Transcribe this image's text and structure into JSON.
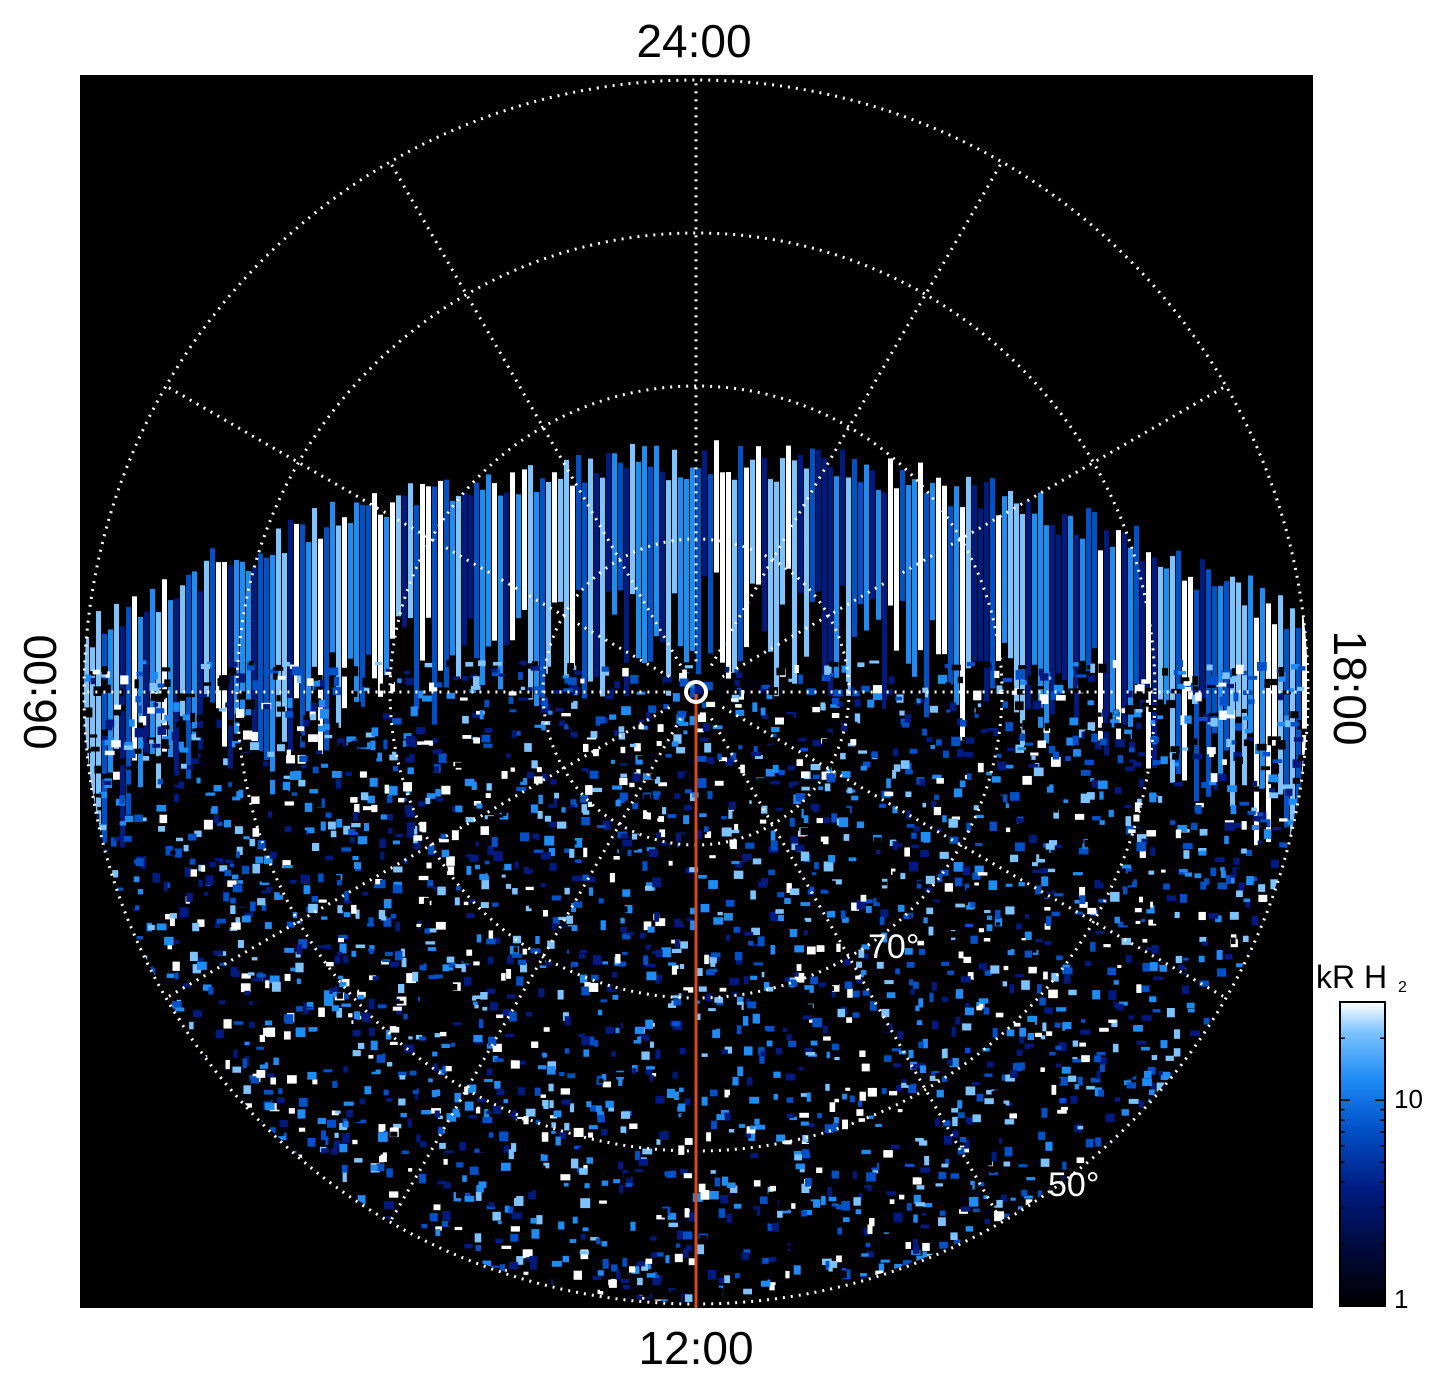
{
  "chart_data": {
    "type": "heatmap",
    "projection": "polar",
    "local_time_labels": {
      "top": "24:00",
      "bottom": "12:00",
      "left": "06:00",
      "right": "18:00"
    },
    "latitude_labels": [
      "70°",
      "50°"
    ],
    "latitude_circles_deg": [
      80,
      70,
      60,
      50
    ],
    "meridian_step_hours": 2,
    "colorbar": {
      "title_main": "kR H",
      "title_sub": "2",
      "scale": "log",
      "ticks": [
        "10",
        "1"
      ],
      "tick_values": [
        10,
        1
      ],
      "range": [
        1,
        30
      ]
    },
    "colormap": [
      "#000000",
      "#000a3a",
      "#001a80",
      "#0050c8",
      "#1f8cf5",
      "#7cc3ff",
      "#ffffff"
    ],
    "marker": {
      "line_color": "#d84a1c",
      "local_time": "12:00"
    },
    "background": "#000000",
    "grid": "dotted white",
    "auroral_oval": {
      "colatitude_region": "upper half",
      "description_colors": [
        "#1f8cf5",
        "#ffffff"
      ]
    }
  }
}
